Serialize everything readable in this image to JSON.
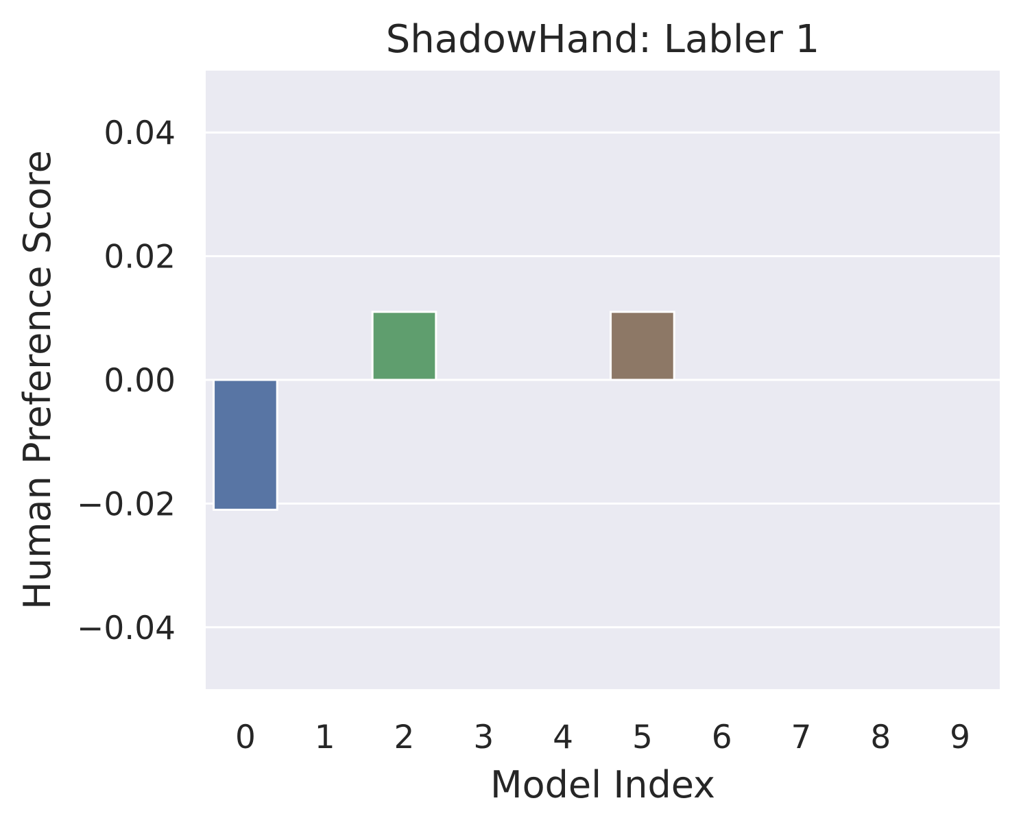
{
  "chart_data": {
    "type": "bar",
    "title": "ShadowHand: Labler 1",
    "xlabel": "Model Index",
    "ylabel": "Human Preference Score",
    "categories": [
      "0",
      "1",
      "2",
      "3",
      "4",
      "5",
      "6",
      "7",
      "8",
      "9"
    ],
    "values": [
      -0.021,
      0,
      0.011,
      0,
      0,
      0.011,
      0,
      0,
      0,
      0
    ],
    "bar_colors": [
      "#5875a4",
      "#cc8963",
      "#5f9e6e",
      "#b55d60",
      "#857aab",
      "#8d7866",
      "#d095bf",
      "#8c8c8c",
      "#c1b37f",
      "#64b5cd"
    ],
    "ylim": [
      -0.05,
      0.05
    ],
    "yticks": [
      -0.04,
      -0.02,
      0.0,
      0.02,
      0.04
    ],
    "ytick_labels": [
      "−0.04",
      "−0.02",
      "0.00",
      "0.02",
      "0.04"
    ],
    "grid": true,
    "background": "#eaeaf2",
    "grid_color": "#ffffff"
  }
}
